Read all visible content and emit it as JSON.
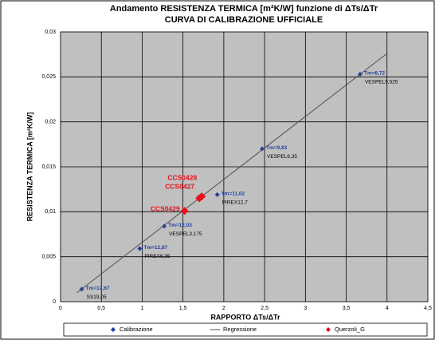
{
  "chart_data": {
    "type": "scatter",
    "title": "Andamento RESISTENZA TERMICA [m²K/W] funzione di ΔTs/ΔTr",
    "subtitle": "CURVA DI CALIBRAZIONE UFFICIALE",
    "x_label": "RAPPORTO ΔTs/ΔTr",
    "y_label": "RESISTENZA TERMICA [m²K/W]",
    "xlim": [
      0,
      4.5
    ],
    "ylim": [
      0,
      0.03
    ],
    "xticks": [
      0,
      {
        "value": 0.5,
        "label": "0,5"
      },
      1,
      {
        "value": 1.5,
        "label": "1,5"
      },
      2,
      {
        "value": 2.5,
        "label": "2,5"
      },
      3,
      {
        "value": 3.5,
        "label": "3,5"
      },
      4,
      {
        "value": 4.5,
        "label": "4,5"
      }
    ],
    "yticks": [
      0,
      {
        "value": 0.005,
        "label": "0,005"
      },
      {
        "value": 0.01,
        "label": "0,01"
      },
      {
        "value": 0.015,
        "label": "0,015"
      },
      {
        "value": 0.02,
        "label": "0,02"
      },
      {
        "value": 0.025,
        "label": "0,025"
      },
      {
        "value": 0.03,
        "label": "0,03"
      }
    ],
    "grid": true,
    "legend": "bottom",
    "series": [
      {
        "name": "Calibrazione",
        "color": "#1f3fa0",
        "style": "markers",
        "x": [
          0.26,
          0.97,
          1.27,
          1.92,
          2.47,
          3.67
        ],
        "values": [
          0.0014,
          0.0059,
          0.0084,
          0.0119,
          0.017,
          0.0253
        ],
        "labels": [
          "Tm=17,67",
          "Tm=12,87",
          "Tm=12,03",
          "Tm=11,02",
          "Tm=9,83",
          "Tm=8,72"
        ],
        "sublabels": [
          "SS19,05",
          "PIREX6,35",
          "VESPEL3,175",
          "PIREX12,7",
          "VESPEL6,35",
          "VESPEL9,525"
        ]
      },
      {
        "name": "Regressione",
        "color": "#505050",
        "style": "line",
        "x": [
          0.2,
          4.0
        ],
        "values": [
          0.001,
          0.0276
        ]
      },
      {
        "name": "Querzoli_G",
        "color": "#e8101a",
        "style": "markers",
        "x": [
          1.52,
          1.7,
          1.73
        ],
        "values": [
          0.0101,
          0.0115,
          0.0117
        ],
        "labels": [
          "CCS0429",
          "CCS0427",
          "CCS0428"
        ]
      }
    ]
  }
}
